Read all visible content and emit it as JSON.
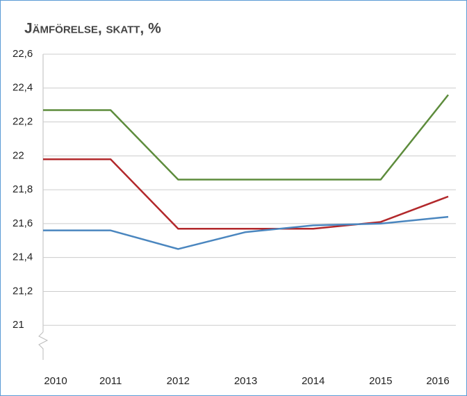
{
  "chart_data": {
    "type": "line",
    "title": "Jämförelse, skatt, %",
    "categories": [
      "2010",
      "2011",
      "2012",
      "2013",
      "2014",
      "2015",
      "2016"
    ],
    "series": [
      {
        "color": "#5d8c3c",
        "values": [
          22.27,
          22.27,
          21.86,
          21.86,
          21.86,
          21.86,
          22.36
        ]
      },
      {
        "color": "#b2282b",
        "values": [
          21.98,
          21.98,
          21.57,
          21.57,
          21.57,
          21.61,
          21.76
        ]
      },
      {
        "color": "#4a86bf",
        "values": [
          21.56,
          21.56,
          21.45,
          21.55,
          21.59,
          21.6,
          21.64
        ]
      }
    ],
    "ylim": [
      20.8,
      22.6
    ],
    "yticks": [
      21,
      {
        "value": 21.2,
        "label": "21,2"
      },
      {
        "value": 21.4,
        "label": "21,4"
      },
      {
        "value": 21.6,
        "label": "21,6"
      },
      {
        "value": 21.8,
        "label": "21,8"
      },
      22,
      {
        "value": 22.2,
        "label": "22,2"
      },
      {
        "value": 22.4,
        "label": "22,4"
      },
      {
        "value": 22.6,
        "label": "22,6"
      }
    ],
    "grid": true
  }
}
